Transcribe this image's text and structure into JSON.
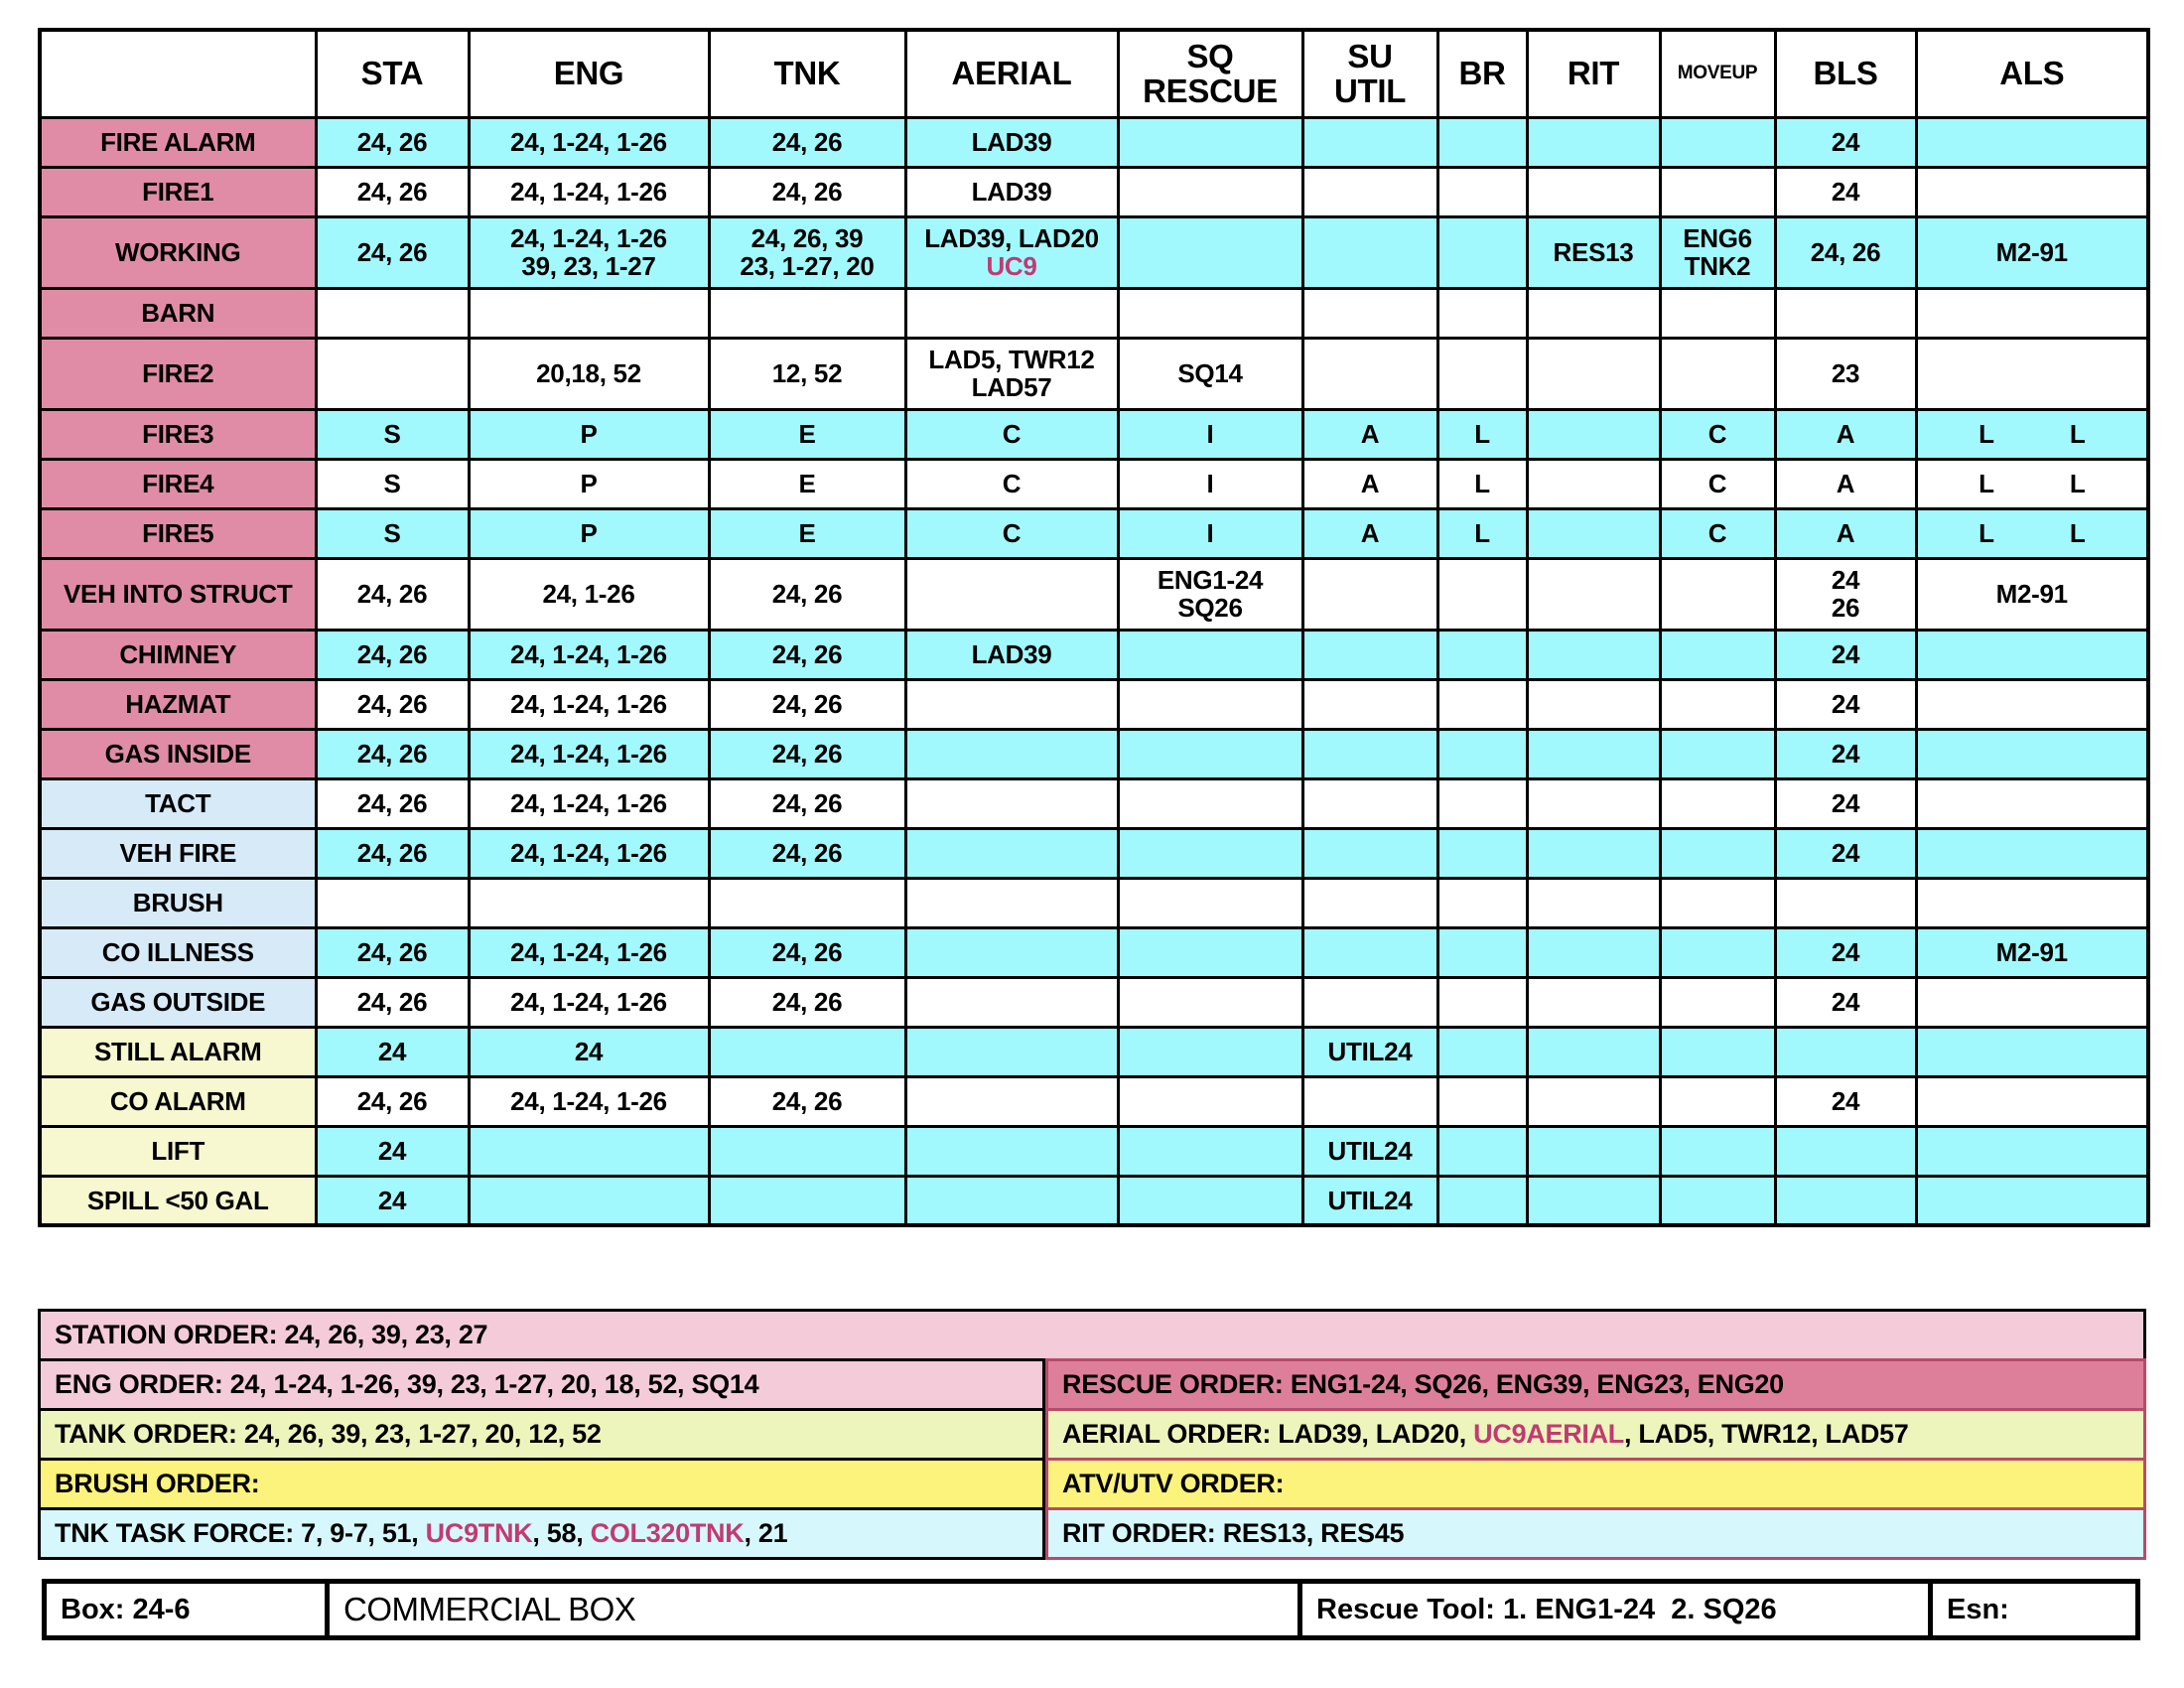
{
  "colors": {
    "cell_highlight_cyan": "#a2f9fd",
    "row_label_pink": "#e08ca6",
    "row_label_blue": "#d6eaf8",
    "row_label_yellow": "#f7f7d0",
    "order_light_pink": "#f4cbd9",
    "order_rose": "#dd7f9b",
    "order_pale_green": "#edf5bd",
    "order_yellow": "#fbf37c",
    "order_pale_cyan": "#d6f8fc",
    "special_unit_magenta": "#c23a72",
    "right_block_border": "#b84a6a"
  },
  "table": {
    "col_keys": [
      "sta",
      "eng",
      "tnk",
      "aerial",
      "sq-rescue",
      "su-util",
      "br",
      "rit",
      "moveup",
      "bls",
      "als"
    ],
    "columns": [
      {
        "key": "corner",
        "label": ""
      },
      {
        "key": "sta",
        "label": "STA"
      },
      {
        "key": "eng",
        "label": "ENG"
      },
      {
        "key": "tnk",
        "label": "TNK"
      },
      {
        "key": "aerial",
        "label": "AERIAL"
      },
      {
        "key": "sq-rescue",
        "label": "SQ\nRESCUE"
      },
      {
        "key": "su-util",
        "label": "SU\nUTIL"
      },
      {
        "key": "br",
        "label": "BR"
      },
      {
        "key": "rit",
        "label": "RIT"
      },
      {
        "key": "moveup",
        "label": "MOVEUP",
        "small": true
      },
      {
        "key": "bls",
        "label": "BLS"
      },
      {
        "key": "als",
        "label": "ALS"
      }
    ],
    "rows": [
      {
        "label": "FIRE ALARM",
        "label_class": "pink",
        "stripe": true,
        "cells": [
          "24, 26",
          "24, 1-24, 1-26",
          "24, 26",
          "LAD39",
          "",
          "",
          "",
          "",
          "",
          "24",
          ""
        ]
      },
      {
        "label": "FIRE1",
        "label_class": "pink",
        "stripe": false,
        "cells": [
          "24, 26",
          "24, 1-24, 1-26",
          "24, 26",
          "LAD39",
          "",
          "",
          "",
          "",
          "",
          "24",
          ""
        ]
      },
      {
        "label": "WORKING",
        "label_class": "pink",
        "stripe": true,
        "tall": true,
        "cells": [
          "24, 26",
          "24, 1-24, 1-26\n39, 23, 1-27",
          "24, 26, 39\n23, 1-27, 20",
          [
            "LAD39, LAD20\n",
            {
              "t": "UC9",
              "c": "#c23a72"
            }
          ],
          "",
          "",
          "",
          "RES13",
          "ENG6\nTNK2",
          "24, 26",
          "M2-91"
        ]
      },
      {
        "label": "BARN",
        "label_class": "pink",
        "stripe": false,
        "cells": [
          "",
          "",
          "",
          "",
          "",
          "",
          "",
          "",
          "",
          "",
          ""
        ]
      },
      {
        "label": "FIRE2",
        "label_class": "pink",
        "stripe": false,
        "tall": true,
        "cells": [
          "",
          "20,18, 52",
          "12, 52",
          "LAD5, TWR12\nLAD57",
          "SQ14",
          "",
          "",
          "",
          "",
          "23",
          ""
        ]
      },
      {
        "label": "FIRE3",
        "label_class": "pink",
        "stripe": true,
        "cells": [
          "S",
          "P",
          "E",
          "C",
          "I",
          "A",
          "L",
          "",
          "C",
          "A",
          "L           L"
        ]
      },
      {
        "label": "FIRE4",
        "label_class": "pink",
        "stripe": false,
        "cells": [
          "S",
          "P",
          "E",
          "C",
          "I",
          "A",
          "L",
          "",
          "C",
          "A",
          "L           L"
        ]
      },
      {
        "label": "FIRE5",
        "label_class": "pink",
        "stripe": true,
        "cells": [
          "S",
          "P",
          "E",
          "C",
          "I",
          "A",
          "L",
          "",
          "C",
          "A",
          "L           L"
        ]
      },
      {
        "label": "VEH INTO STRUCT",
        "label_class": "pink",
        "stripe": false,
        "tall": true,
        "cells": [
          "24, 26",
          "24, 1-26",
          "24, 26",
          "",
          "ENG1-24\nSQ26",
          "",
          "",
          "",
          "",
          "24\n26",
          "M2-91"
        ]
      },
      {
        "label": "CHIMNEY",
        "label_class": "pink",
        "stripe": true,
        "cells": [
          "24, 26",
          "24, 1-24, 1-26",
          "24, 26",
          "LAD39",
          "",
          "",
          "",
          "",
          "",
          "24",
          ""
        ]
      },
      {
        "label": "HAZMAT",
        "label_class": "pink",
        "stripe": false,
        "cells": [
          "24, 26",
          "24, 1-24, 1-26",
          "24, 26",
          "",
          "",
          "",
          "",
          "",
          "",
          "24",
          ""
        ]
      },
      {
        "label": "GAS INSIDE",
        "label_class": "pink",
        "stripe": true,
        "cells": [
          "24, 26",
          "24, 1-24, 1-26",
          "24, 26",
          "",
          "",
          "",
          "",
          "",
          "",
          "24",
          ""
        ]
      },
      {
        "label": "TACT",
        "label_class": "blue",
        "stripe": false,
        "cells": [
          "24, 26",
          "24, 1-24, 1-26",
          "24, 26",
          "",
          "",
          "",
          "",
          "",
          "",
          "24",
          ""
        ]
      },
      {
        "label": "VEH FIRE",
        "label_class": "blue",
        "stripe": true,
        "cells": [
          "24, 26",
          "24, 1-24, 1-26",
          "24, 26",
          "",
          "",
          "",
          "",
          "",
          "",
          "24",
          ""
        ]
      },
      {
        "label": "BRUSH",
        "label_class": "blue",
        "stripe": false,
        "cells": [
          "",
          "",
          "",
          "",
          "",
          "",
          "",
          "",
          "",
          "",
          ""
        ]
      },
      {
        "label": "CO ILLNESS",
        "label_class": "blue",
        "stripe": true,
        "cells": [
          "24, 26",
          "24, 1-24, 1-26",
          "24, 26",
          "",
          "",
          "",
          "",
          "",
          "",
          "24",
          "M2-91"
        ]
      },
      {
        "label": "GAS OUTSIDE",
        "label_class": "blue",
        "stripe": false,
        "cells": [
          "24, 26",
          "24, 1-24, 1-26",
          "24, 26",
          "",
          "",
          "",
          "",
          "",
          "",
          "24",
          ""
        ]
      },
      {
        "label": "STILL ALARM",
        "label_class": "yellow",
        "stripe": true,
        "cells": [
          "24",
          "24",
          "",
          "",
          "",
          "UTIL24",
          "",
          "",
          "",
          "",
          ""
        ]
      },
      {
        "label": "CO ALARM",
        "label_class": "yellow",
        "stripe": false,
        "cells": [
          "24, 26",
          "24, 1-24, 1-26",
          "24, 26",
          "",
          "",
          "",
          "",
          "",
          "",
          "24",
          ""
        ]
      },
      {
        "label": "LIFT",
        "label_class": "yellow",
        "stripe": true,
        "cells": [
          "24",
          "",
          "",
          "",
          "",
          "UTIL24",
          "",
          "",
          "",
          "",
          ""
        ]
      },
      {
        "label": "SPILL <50 GAL",
        "label_class": "yellow",
        "stripe": true,
        "cells": [
          "24",
          "",
          "",
          "",
          "",
          "UTIL24",
          "",
          "",
          "",
          "",
          ""
        ]
      }
    ]
  },
  "orders": {
    "station": "STATION ORDER: 24, 26, 39, 23, 27",
    "eng": "ENG ORDER: 24, 1-24, 1-26, 39, 23, 1-27, 20, 18, 52, SQ14",
    "tank": "TANK ORDER: 24, 26, 39, 23, 1-27, 20, 12, 52",
    "brush": "BRUSH ORDER:",
    "tnk_task_force": [
      "TNK TASK FORCE: 7, 9-7, 51, ",
      {
        "t": "UC9TNK",
        "c": "#c23a72"
      },
      ", 58, ",
      {
        "t": "COL320TNK",
        "c": "#c23a72"
      },
      ", 21"
    ],
    "rescue": "RESCUE ORDER: ENG1-24, SQ26, ENG39, ENG23, ENG20",
    "aerial": [
      "AERIAL ORDER: LAD39, LAD20, ",
      {
        "t": "UC9AERIAL",
        "c": "#c23a72"
      },
      ", LAD5, TWR12, LAD57"
    ],
    "atv": "ATV/UTV ORDER:",
    "rit": "RIT ORDER: RES13, RES45"
  },
  "footer": {
    "box": "Box: 24-6",
    "box_type": "COMMERCIAL BOX",
    "rescue_tool": "Rescue Tool: 1. ENG1-24  2. SQ26",
    "esn": "Esn:"
  }
}
